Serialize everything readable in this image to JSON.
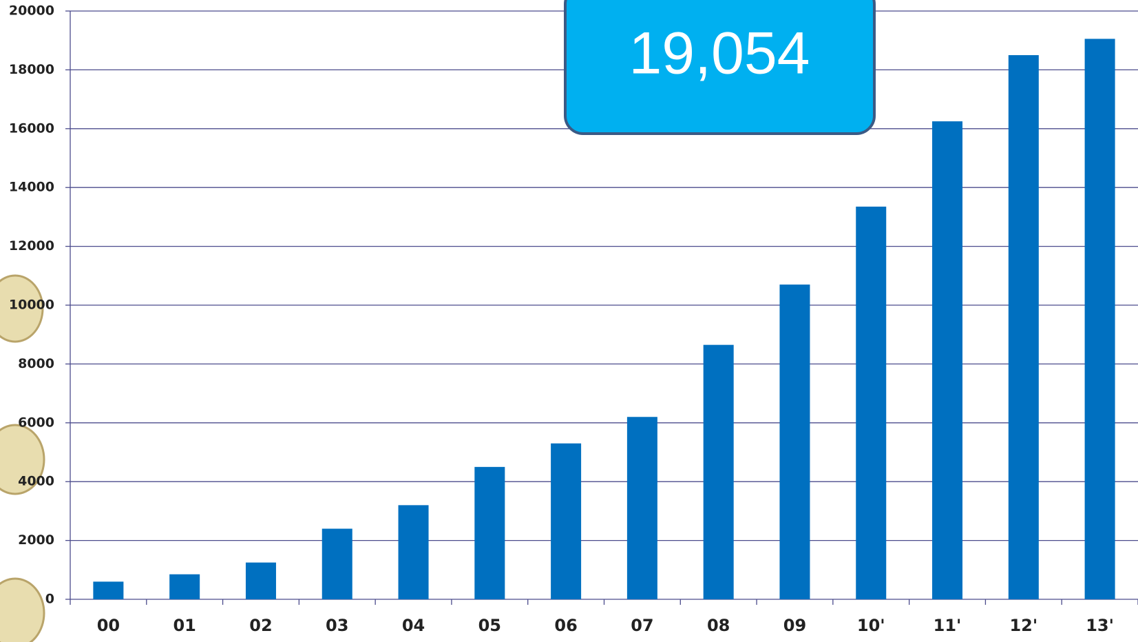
{
  "chart_data": {
    "type": "bar",
    "categories": [
      "00",
      "01",
      "02",
      "03",
      "04",
      "05",
      "06",
      "07",
      "08",
      "09",
      "10'",
      "11'",
      "12'",
      "13'"
    ],
    "values": [
      600,
      850,
      1250,
      2400,
      3200,
      4500,
      5300,
      6200,
      8650,
      10700,
      13350,
      16250,
      18500,
      19054
    ],
    "color": "#0070c0",
    "ylim": [
      0,
      20000
    ],
    "yticks": [
      0,
      2000,
      4000,
      6000,
      8000,
      10000,
      12000,
      14000,
      16000,
      18000,
      20000
    ],
    "grid": true,
    "annotation": "19,054"
  }
}
